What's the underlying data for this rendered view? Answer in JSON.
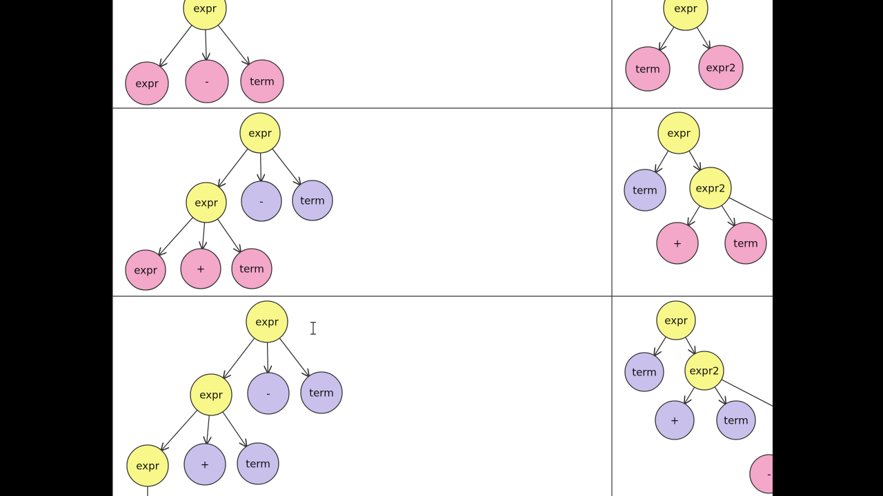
{
  "panels": [
    {
      "nodes": [
        {
          "label": "expr"
        },
        {
          "label": "expr"
        },
        {
          "label": "-"
        },
        {
          "label": "term"
        }
      ]
    },
    {
      "nodes": [
        {
          "label": "expr"
        },
        {
          "label": "term"
        },
        {
          "label": "expr2"
        }
      ]
    },
    {
      "nodes": [
        {
          "label": "expr"
        },
        {
          "label": "expr"
        },
        {
          "label": "-"
        },
        {
          "label": "term"
        },
        {
          "label": "expr"
        },
        {
          "label": "+"
        },
        {
          "label": "term"
        }
      ]
    },
    {
      "nodes": [
        {
          "label": "expr"
        },
        {
          "label": "term"
        },
        {
          "label": "expr2"
        },
        {
          "label": "+"
        },
        {
          "label": "term"
        }
      ]
    },
    {
      "nodes": [
        {
          "label": "expr"
        },
        {
          "label": "expr"
        },
        {
          "label": "-"
        },
        {
          "label": "term"
        },
        {
          "label": "expr"
        },
        {
          "label": "+"
        },
        {
          "label": "term"
        }
      ]
    },
    {
      "nodes": [
        {
          "label": "expr"
        },
        {
          "label": "term"
        },
        {
          "label": "expr2"
        },
        {
          "label": "+"
        },
        {
          "label": "term"
        },
        {
          "label": "-"
        }
      ]
    }
  ]
}
